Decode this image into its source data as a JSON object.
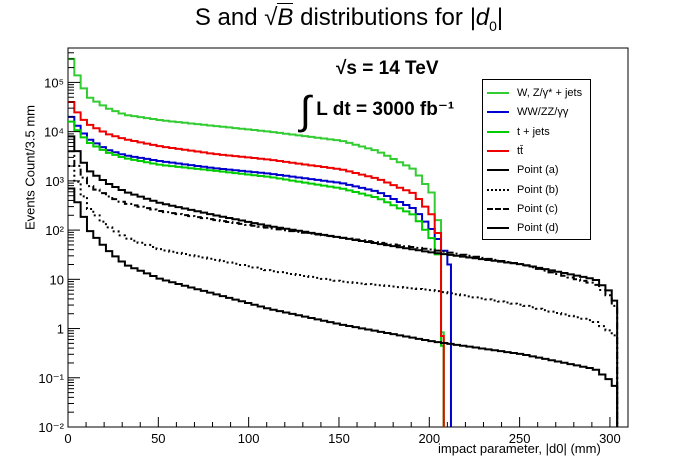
{
  "chart_data": {
    "type": "line",
    "title": "S and √B distributions for |d0|",
    "title_parts": {
      "prefix": "S and",
      "sqrt": "√",
      "var": "B",
      "mid": "distributions for",
      "abs": "|d",
      "sub": "0",
      "abs_end": "|"
    },
    "xlabel": "impact parameter, |d0| (mm)",
    "ylabel": "Events Count/3.5 mm",
    "xlim": [
      0,
      310
    ],
    "ylim": [
      0.01,
      500000
    ],
    "yscale": "log",
    "xticks": [
      0,
      50,
      100,
      150,
      200,
      250,
      300
    ],
    "yticks": [
      {
        "value": 0.01,
        "label": "10⁻²"
      },
      {
        "value": 0.1,
        "label": "10⁻¹"
      },
      {
        "value": 1,
        "label": "1"
      },
      {
        "value": 10,
        "label": "10"
      },
      {
        "value": 100,
        "label": "10²"
      },
      {
        "value": 1000,
        "label": "10³"
      },
      {
        "value": 10000,
        "label": "10⁴"
      },
      {
        "value": 100000,
        "label": "10⁵"
      }
    ],
    "annotations": {
      "energy": "√s = 14 TeV",
      "lumi": "L dt = 3000 fb⁻¹",
      "lumi_integral": "∫"
    },
    "series": [
      {
        "name": "W, Z/γ* + jets",
        "color": "#33cc33",
        "style": "solid",
        "x": [
          0,
          5,
          10,
          20,
          30,
          50,
          80,
          110,
          150,
          170,
          190,
          200,
          205,
          208
        ],
        "y": [
          300000,
          100000,
          50000,
          30000,
          22000,
          17000,
          13000,
          10000,
          6500,
          4000,
          1700,
          550,
          70,
          0.01
        ]
      },
      {
        "name": "WW/ZZ/γγ",
        "color": "#0000cc",
        "style": "solid",
        "x": [
          0,
          5,
          10,
          20,
          30,
          50,
          80,
          110,
          150,
          170,
          190,
          200,
          205,
          210,
          212
        ],
        "y": [
          20000,
          11000,
          7000,
          4300,
          3300,
          2500,
          1800,
          1400,
          900,
          600,
          270,
          100,
          50,
          20,
          0.01
        ]
      },
      {
        "name": "t + jets",
        "color": "#00cc00",
        "style": "solid",
        "x": [
          0,
          5,
          10,
          20,
          30,
          50,
          80,
          110,
          150,
          170,
          190,
          200,
          205,
          208
        ],
        "y": [
          16000,
          9000,
          6000,
          3800,
          2900,
          2100,
          1600,
          1200,
          700,
          450,
          200,
          65,
          20,
          0.01
        ]
      },
      {
        "name": "tt̄",
        "color": "#ee0000",
        "style": "solid",
        "x": [
          0,
          5,
          10,
          20,
          30,
          50,
          80,
          110,
          150,
          170,
          190,
          200,
          205,
          208
        ],
        "y": [
          40000,
          20000,
          14000,
          9000,
          7000,
          5000,
          3500,
          2700,
          1700,
          1100,
          550,
          200,
          50,
          0.01
        ]
      },
      {
        "name": "Point (a)",
        "color": "#000000",
        "style": "solid",
        "x": [
          0,
          5,
          10,
          20,
          30,
          50,
          80,
          110,
          150,
          200,
          250,
          290,
          300,
          303,
          304
        ],
        "y": [
          700,
          280,
          100,
          40,
          20,
          10,
          5,
          2.5,
          1.2,
          0.55,
          0.3,
          0.15,
          0.08,
          0.05,
          0.01
        ]
      },
      {
        "name": "Point (b)",
        "color": "#000000",
        "style": "dotted",
        "x": [
          0,
          5,
          10,
          20,
          30,
          50,
          80,
          110,
          150,
          200,
          250,
          290,
          300,
          303,
          304
        ],
        "y": [
          2000,
          700,
          280,
          120,
          70,
          40,
          25,
          15,
          9,
          6,
          3,
          1.4,
          0.8,
          0.6,
          0.01
        ]
      },
      {
        "name": "Point (c)",
        "color": "#000000",
        "style": "dashdot",
        "x": [
          0,
          5,
          10,
          20,
          30,
          50,
          80,
          110,
          150,
          200,
          250,
          290,
          300,
          303,
          304
        ],
        "y": [
          4000,
          1500,
          800,
          500,
          350,
          240,
          160,
          110,
          70,
          40,
          20,
          8,
          4,
          1.5,
          0.01
        ]
      },
      {
        "name": "Point (d)",
        "color": "#000000",
        "style": "solid",
        "x": [
          0,
          5,
          10,
          20,
          30,
          50,
          80,
          110,
          150,
          200,
          250,
          290,
          300,
          303,
          304
        ],
        "y": [
          8000,
          3000,
          1600,
          900,
          600,
          350,
          200,
          120,
          70,
          35,
          20,
          10,
          5,
          2,
          0.01
        ]
      }
    ]
  }
}
